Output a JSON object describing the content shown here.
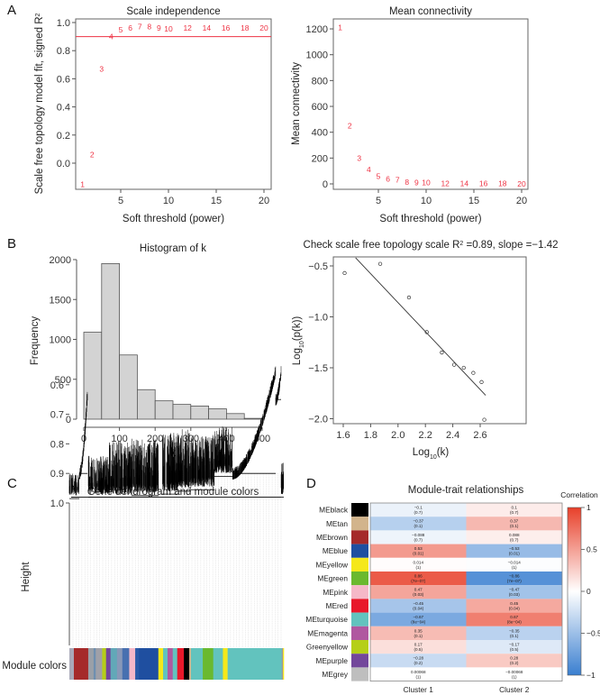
{
  "panel_letters": [
    "A",
    "B",
    "C",
    "D"
  ],
  "chart_data": [
    {
      "id": "A1",
      "type": "scatter",
      "title": "Scale independence",
      "xlabel": "Soft threshold (power)",
      "ylabel": "Scale free topology model fit, signed R",
      "ylabel_sup": "2",
      "xlim": [
        1,
        20
      ],
      "ylim": [
        -0.15,
        1.0
      ],
      "xticks": [
        5,
        10,
        15,
        20
      ],
      "yticks": [
        "1.0",
        "0.8",
        "0.6",
        "0.4",
        "0.2",
        "0.0"
      ],
      "point_color": "#ee3344",
      "hline": 0.9,
      "hline_color": "#ee3344",
      "points": [
        {
          "label": "1",
          "x": 1,
          "y": -0.15
        },
        {
          "label": "2",
          "x": 2,
          "y": 0.06
        },
        {
          "label": "3",
          "x": 3,
          "y": 0.67
        },
        {
          "label": "4",
          "x": 4,
          "y": 0.9
        },
        {
          "label": "5",
          "x": 5,
          "y": 0.95
        },
        {
          "label": "6",
          "x": 6,
          "y": 0.96
        },
        {
          "label": "7",
          "x": 7,
          "y": 0.97
        },
        {
          "label": "8",
          "x": 8,
          "y": 0.97
        },
        {
          "label": "9",
          "x": 9,
          "y": 0.96
        },
        {
          "label": "10",
          "x": 10,
          "y": 0.955
        },
        {
          "label": "12",
          "x": 12,
          "y": 0.96
        },
        {
          "label": "14",
          "x": 14,
          "y": 0.96
        },
        {
          "label": "16",
          "x": 16,
          "y": 0.96
        },
        {
          "label": "18",
          "x": 18,
          "y": 0.96
        },
        {
          "label": "20",
          "x": 20,
          "y": 0.96
        }
      ]
    },
    {
      "id": "A2",
      "type": "scatter",
      "title": "Mean connectivity",
      "xlabel": "Soft threshold (power)",
      "ylabel": "Mean connectivity",
      "xlim": [
        1,
        20
      ],
      "ylim": [
        0,
        1210
      ],
      "xticks": [
        5,
        10,
        15,
        20
      ],
      "yticks": [
        0,
        200,
        400,
        600,
        800,
        1000,
        1200
      ],
      "point_color": "#ee3344",
      "points": [
        {
          "label": "1",
          "x": 1,
          "y": 1210
        },
        {
          "label": "2",
          "x": 2,
          "y": 450
        },
        {
          "label": "3",
          "x": 3,
          "y": 200
        },
        {
          "label": "4",
          "x": 4,
          "y": 110
        },
        {
          "label": "5",
          "x": 5,
          "y": 60
        },
        {
          "label": "6",
          "x": 6,
          "y": 38
        },
        {
          "label": "7",
          "x": 7,
          "y": 30
        },
        {
          "label": "8",
          "x": 8,
          "y": 15
        },
        {
          "label": "9",
          "x": 9,
          "y": 10
        },
        {
          "label": "10",
          "x": 10,
          "y": 10
        },
        {
          "label": "12",
          "x": 12,
          "y": 3
        },
        {
          "label": "14",
          "x": 14,
          "y": 3
        },
        {
          "label": "16",
          "x": 16,
          "y": 2
        },
        {
          "label": "18",
          "x": 18,
          "y": 2
        },
        {
          "label": "20",
          "x": 20,
          "y": 1
        }
      ]
    },
    {
      "id": "B1",
      "type": "bar",
      "title": "Histogram of k",
      "xlabel": "k",
      "ylabel": "Frequency",
      "xticks": [
        0,
        100,
        200,
        300,
        400,
        500
      ],
      "yticks": [
        0,
        500,
        1000,
        1500,
        2000
      ],
      "bin_width": 50,
      "bin_starts": [
        0,
        50,
        100,
        150,
        200,
        250,
        300,
        350,
        400,
        450
      ],
      "values": [
        1090,
        1950,
        805,
        370,
        230,
        185,
        165,
        130,
        70,
        10
      ],
      "bar_color": "#d3d3d3"
    },
    {
      "id": "B2",
      "type": "scatter",
      "title_prefix": "Check scale free topology scale R",
      "title_sup": "2",
      "title_suffix": " =0.89, slope =−1.42",
      "xlabel_prefix": "Log",
      "xlabel_sub": "10",
      "xlabel_suffix": "(k)",
      "ylabel_prefix": "Log",
      "ylabel_sub": "10",
      "ylabel_suffix": "(p(k))",
      "xticks": [
        "1.6",
        "1.8",
        "2.0",
        "2.2",
        "2.4",
        "2.6"
      ],
      "yticks": [
        "−0.5",
        "−1.0",
        "−1.5",
        "−2.0"
      ],
      "x": [
        1.61,
        1.87,
        2.08,
        2.21,
        2.32,
        2.41,
        2.48,
        2.55,
        2.61,
        2.63
      ],
      "y": [
        -0.57,
        -0.48,
        -0.81,
        -1.15,
        -1.35,
        -1.47,
        -1.5,
        -1.55,
        -1.64,
        -2.01
      ],
      "fit_line": {
        "x": [
          1.69,
          2.64
        ],
        "y": [
          -0.42,
          -1.77
        ]
      },
      "r_squared": 0.89,
      "slope": -1.42
    },
    {
      "id": "C",
      "type": "dendrogram",
      "title": "Gene dendrogram and module colors",
      "ylabel": "Height",
      "yticks": [
        "1.0",
        "0.9",
        "0.8",
        "0.7",
        "0.6"
      ],
      "ylim": [
        0.55,
        1.0
      ],
      "color_bar_label": "Module colors",
      "module_colors": [
        {
          "color": "#a9a9b8",
          "fraction": 0.021
        },
        {
          "color": "#a52a2a",
          "fraction": 0.067
        },
        {
          "color": "#9aa0a8",
          "fraction": 0.025
        },
        {
          "color": "#6f8fb0",
          "fraction": 0.01
        },
        {
          "color": "#a0a0a8",
          "fraction": 0.03
        },
        {
          "color": "#b5cf18",
          "fraction": 0.018
        },
        {
          "color": "#73479b",
          "fraction": 0.021
        },
        {
          "color": "#62a8b8",
          "fraction": 0.03
        },
        {
          "color": "#8898b8",
          "fraction": 0.025
        },
        {
          "color": "#4870b0",
          "fraction": 0.032
        },
        {
          "color": "#f5b8c8",
          "fraction": 0.028
        },
        {
          "color": "#2a5aa8",
          "fraction": 0.018
        },
        {
          "color": "#1f4fa0",
          "fraction": 0.09
        },
        {
          "color": "#f5e81a",
          "fraction": 0.022
        },
        {
          "color": "#62c3be",
          "fraction": 0.021
        },
        {
          "color": "#b058a0",
          "fraction": 0.024
        },
        {
          "color": "#62c3be",
          "fraction": 0.021
        },
        {
          "color": "#e8182a",
          "fraction": 0.031
        },
        {
          "color": "#000000",
          "fraction": 0.025
        },
        {
          "color": "#d2b48c",
          "fraction": 0.008
        },
        {
          "color": "#62c3be",
          "fraction": 0.055
        },
        {
          "color": "#6ab92f",
          "fraction": 0.049
        },
        {
          "color": "#62c3be",
          "fraction": 0.045
        },
        {
          "color": "#f5e81a",
          "fraction": 0.022
        },
        {
          "color": "#62c3be",
          "fraction": 0.252
        },
        {
          "color": "#9a9aa0",
          "fraction": 0.006
        },
        {
          "color": "#f5e81a",
          "fraction": 0.004
        }
      ]
    },
    {
      "id": "D",
      "type": "heatmap",
      "title": "Module-trait relationships",
      "columns": [
        "Cluster 1",
        "Cluster 2"
      ],
      "legend_title": "Correlation",
      "legend_ticks": [
        "1",
        "0.5",
        "0",
        "−0.5",
        "−1"
      ],
      "color_low": "#3a7fd0",
      "color_mid": "#ffffff",
      "color_high": "#e8402a",
      "range": [
        -1,
        1
      ],
      "rows": [
        {
          "label": "MEblack",
          "swatch": "#000000",
          "cor": [
            -0.1,
            0.1
          ],
          "text": [
            "−0.1",
            "0.1"
          ],
          "p": [
            "(0.7)",
            "(0.7)"
          ]
        },
        {
          "label": "MEtan",
          "swatch": "#d2b48c",
          "cor": [
            -0.37,
            0.37
          ],
          "text": [
            "−0.37",
            "0.37"
          ],
          "p": [
            "(0.1)",
            "(0.1)"
          ]
        },
        {
          "label": "MEbrown",
          "swatch": "#a52a2a",
          "cor": [
            -0.088,
            0.088
          ],
          "text": [
            "−0.088",
            "0.088"
          ],
          "p": [
            "(0.7)",
            "(0.7)"
          ]
        },
        {
          "label": "MEblue",
          "swatch": "#1f4fa0",
          "cor": [
            0.53,
            -0.53
          ],
          "text": [
            "0.53",
            "−0.53"
          ],
          "p": [
            "(0.01)",
            "(0.01)"
          ]
        },
        {
          "label": "MEyellow",
          "swatch": "#f5e81a",
          "cor": [
            0.014,
            -0.014
          ],
          "text": [
            "0.014",
            "−0.014"
          ],
          "p": [
            "(1)",
            "(1)"
          ]
        },
        {
          "label": "MEgreen",
          "swatch": "#6ab92f",
          "cor": [
            0.86,
            -0.86
          ],
          "text": [
            "0.86",
            "−0.86"
          ],
          "p": [
            "(7e−07)",
            "(7e−07)"
          ]
        },
        {
          "label": "MEpink",
          "swatch": "#f5b8c8",
          "cor": [
            0.47,
            -0.47
          ],
          "text": [
            "0.47",
            "−0.47"
          ],
          "p": [
            "(0.03)",
            "(0.03)"
          ]
        },
        {
          "label": "MEred",
          "swatch": "#e8182a",
          "cor": [
            -0.45,
            0.45
          ],
          "text": [
            "−0.45",
            "0.45"
          ],
          "p": [
            "(0.04)",
            "(0.04)"
          ]
        },
        {
          "label": "MEturquoise",
          "swatch": "#62c3be",
          "cor": [
            -0.67,
            0.67
          ],
          "text": [
            "−0.67",
            "0.67"
          ],
          "p": [
            "(8e−04)",
            "(8e−04)"
          ]
        },
        {
          "label": "MEmagenta",
          "swatch": "#b058a0",
          "cor": [
            0.35,
            -0.35
          ],
          "text": [
            "0.35",
            "−0.35"
          ],
          "p": [
            "(0.1)",
            "(0.1)"
          ]
        },
        {
          "label": "Greenyellow",
          "swatch": "#b5cf18",
          "cor": [
            0.17,
            -0.17
          ],
          "text": [
            "0.17",
            "−0.17"
          ],
          "p": [
            "(0.5)",
            "(0.5)"
          ]
        },
        {
          "label": "MEpurple",
          "swatch": "#73479b",
          "cor": [
            -0.28,
            0.28
          ],
          "text": [
            "−0.28",
            "0.28"
          ],
          "p": [
            "(0.2)",
            "(0.2)"
          ]
        },
        {
          "label": "MEgrey",
          "swatch": "#bebebe",
          "cor": [
            0.00068,
            -0.00068
          ],
          "text": [
            "0.00068",
            "−0.00068"
          ],
          "p": [
            "(1)",
            "(1)"
          ]
        }
      ]
    }
  ]
}
